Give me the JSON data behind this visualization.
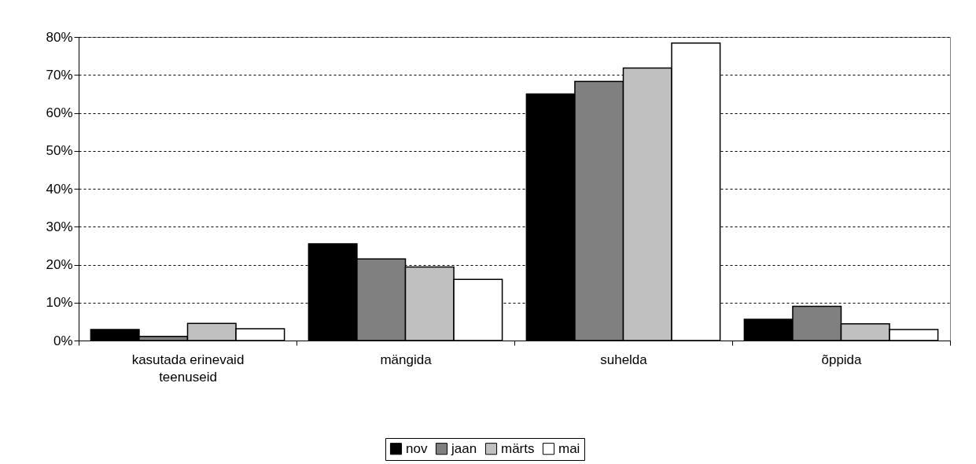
{
  "chart_data": {
    "type": "bar",
    "categories": [
      "kasutada erinevaid teenuseid",
      "mängida",
      "suhelda",
      "õppida"
    ],
    "series": [
      {
        "name": "nov",
        "color": "#000000",
        "values": [
          2.9,
          25.5,
          65.0,
          5.6
        ]
      },
      {
        "name": "jaan",
        "color": "#808080",
        "values": [
          1.1,
          21.5,
          68.3,
          9.0
        ]
      },
      {
        "name": "märts",
        "color": "#c0c0c0",
        "values": [
          4.5,
          19.4,
          71.8,
          4.4
        ]
      },
      {
        "name": "mai",
        "color": "#ffffff",
        "values": [
          3.1,
          16.1,
          78.4,
          2.9
        ]
      }
    ],
    "ylim": [
      0,
      80
    ],
    "yticks": [
      {
        "value": 0,
        "label": "0%"
      },
      {
        "value": 10,
        "label": "10%"
      },
      {
        "value": 20,
        "label": "20%"
      },
      {
        "value": 30,
        "label": "30%"
      },
      {
        "value": 40,
        "label": "40%"
      },
      {
        "value": 50,
        "label": "50%"
      },
      {
        "value": 60,
        "label": "60%"
      },
      {
        "value": 70,
        "label": "70%"
      },
      {
        "value": 80,
        "label": "80%"
      }
    ],
    "grid": "y",
    "legend": "bottom"
  }
}
